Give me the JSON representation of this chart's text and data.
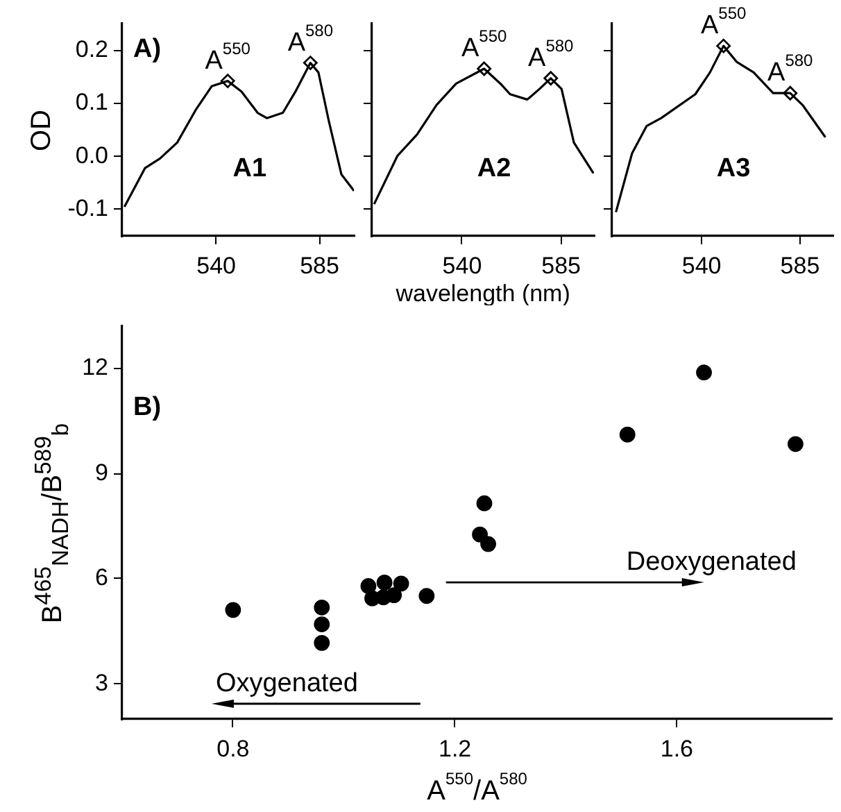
{
  "chart_data": [
    {
      "type": "line",
      "ylabel": "OD",
      "xlim": [
        499,
        600
      ],
      "ylim": [
        -0.15,
        0.25
      ],
      "xticks": [
        540,
        585
      ],
      "yticks": [
        -0.1,
        {
          "value": 0,
          "label": "0.0"
        },
        0.1,
        0.2
      ],
      "grid": false,
      "legend": false,
      "marker": "none",
      "series": [
        {
          "color": "#000000",
          "x": [
            500,
            509,
            515.5,
            523,
            531,
            538,
            545,
            551,
            558,
            562,
            569,
            574.5,
            581,
            584.5,
            589,
            594.5,
            600
          ],
          "values": [
            -0.095,
            -0.022,
            -0.004,
            0.026,
            0.087,
            0.132,
            0.142,
            0.122,
            0.082,
            0.072,
            0.082,
            0.122,
            0.176,
            0.158,
            0.067,
            -0.034,
            -0.065
          ]
        },
        {
          "type": "scatter",
          "marker": "diamond",
          "color": "#000000",
          "x": [
            545,
            581
          ],
          "values": [
            0.142,
            0.176
          ]
        }
      ],
      "annotations": [
        "A)",
        "A1",
        {
          "text": "A$^{550}$",
          "x": 545,
          "y": 0.142
        },
        {
          "text": "A$^{580}$",
          "x": 581,
          "y": 0.176
        }
      ]
    },
    {
      "type": "line",
      "xlabel": "wavelength (nm)",
      "xlim": [
        499,
        600
      ],
      "ylim": [
        -0.15,
        0.25
      ],
      "xticks": [
        540,
        585
      ],
      "yticks": [
        {
          "value": -0.1,
          "label": null
        },
        {
          "value": 0,
          "label": null
        },
        {
          "value": 0.1,
          "label": null
        },
        {
          "value": 0.2,
          "label": null
        }
      ],
      "tick_labels": "x",
      "grid": false,
      "legend": false,
      "marker": "none",
      "series": [
        {
          "color": "#000000",
          "x": [
            500,
            510.6,
            519.5,
            528.4,
            537.3,
            550,
            557.4,
            561.8,
            569.6,
            575.2,
            580.3,
            585.2,
            590.8,
            599.7
          ],
          "values": [
            -0.09,
            0.001,
            0.041,
            0.097,
            0.137,
            0.165,
            0.137,
            0.117,
            0.107,
            0.127,
            0.147,
            0.127,
            0.026,
            -0.032
          ]
        },
        {
          "type": "scatter",
          "marker": "diamond",
          "color": "#000000",
          "x": [
            550,
            580.3
          ],
          "values": [
            0.165,
            0.147
          ]
        }
      ],
      "annotations": [
        "A2",
        {
          "text": "A$^{550}$",
          "x": 550,
          "y": 0.165
        },
        {
          "text": "A$^{580}$",
          "x": 580.3,
          "y": 0.147
        }
      ]
    },
    {
      "type": "line",
      "xlim": [
        499,
        600
      ],
      "ylim": [
        -0.15,
        0.25
      ],
      "xticks": [
        540,
        585
      ],
      "yticks": [
        {
          "value": -0.1,
          "label": null
        },
        {
          "value": 0,
          "label": null
        },
        {
          "value": 0.1,
          "label": null
        },
        {
          "value": 0.2,
          "label": null
        }
      ],
      "tick_labels": "x",
      "grid": false,
      "legend": false,
      "marker": "none",
      "series": [
        {
          "color": "#000000",
          "x": [
            500.8,
            508.2,
            514.8,
            521.5,
            537.1,
            543.8,
            550,
            556,
            563.8,
            572.7,
            580.5,
            586.1,
            596.6
          ],
          "values": [
            -0.105,
            0.006,
            0.057,
            0.072,
            0.117,
            0.158,
            0.208,
            0.178,
            0.158,
            0.119,
            0.119,
            0.097,
            0.036
          ]
        },
        {
          "type": "scatter",
          "marker": "diamond",
          "color": "#000000",
          "x": [
            550,
            580.5
          ],
          "values": [
            0.208,
            0.119
          ]
        }
      ],
      "annotations": [
        "A3",
        {
          "text": "A$^{550}$",
          "x": 550,
          "y": 0.208
        },
        {
          "text": "A$^{580}$",
          "x": 580.5,
          "y": 0.119
        }
      ]
    },
    {
      "type": "scatter",
      "xlabel": "A$^{550}$/A$^{580}$",
      "ylabel": "B$^{465}$$_{NADH}$/B$^{589}$$_{b}$",
      "xlim": [
        0.6,
        1.88
      ],
      "ylim": [
        2,
        13.2
      ],
      "xticks": [
        0.8,
        1.2,
        1.6
      ],
      "yticks": [
        3,
        6,
        9,
        12
      ],
      "grid": false,
      "legend": false,
      "marker": "circle",
      "series": [
        {
          "color": "#000000",
          "x": [
            0.8,
            0.96,
            0.96,
            0.96,
            1.044,
            1.051,
            1.073,
            1.071,
            1.09,
            1.103,
            1.149,
            1.253,
            1.245,
            1.26,
            1.511,
            1.649,
            1.814
          ],
          "values": [
            5.11,
            5.18,
            4.7,
            4.17,
            5.79,
            5.44,
            5.89,
            5.47,
            5.53,
            5.86,
            5.51,
            8.15,
            7.26,
            6.99,
            10.11,
            11.88,
            9.84
          ]
        }
      ],
      "annotations": [
        "B)",
        "Oxygenated",
        "Deoxygenated"
      ]
    }
  ]
}
